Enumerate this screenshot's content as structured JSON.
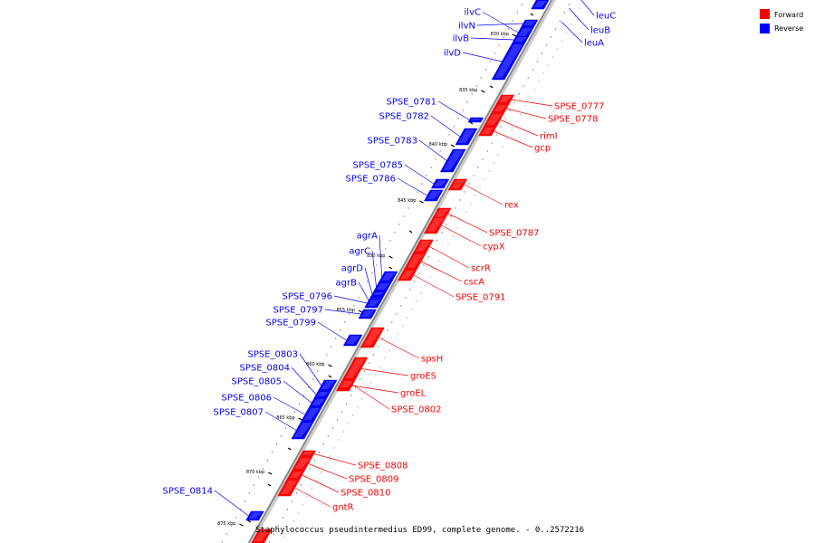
{
  "caption": "Staphylococcus pseudintermedius ED99, complete genome. - 0..2572216",
  "legend": [
    {
      "label": "Forward",
      "color": "#ff0000"
    },
    {
      "label": "Reverse",
      "color": "#0000ff"
    }
  ],
  "colors": {
    "forward": "#ff0000",
    "reverse": "#0000ff",
    "backbone": "#999999"
  },
  "kbp_ticks": [
    "830 kbp",
    "835 kbp",
    "840 kbp",
    "845 kbp",
    "850 kbp",
    "855 kbp",
    "860 kbp",
    "865 kbp",
    "870 kbp",
    "875 kbp"
  ],
  "reverse_genes": [
    "ilvC",
    "ilvN",
    "ilvB",
    "ilvD",
    "SPSE_0781",
    "SPSE_0782",
    "SPSE_0783",
    "SPSE_0785",
    "SPSE_0786",
    "agrA",
    "agrC",
    "agrD",
    "agrB",
    "SPSE_0796",
    "SPSE_0797",
    "SPSE_0799",
    "SPSE_0803",
    "SPSE_0804",
    "SPSE_0805",
    "SPSE_0806",
    "SPSE_0807",
    "SPSE_0814"
  ],
  "reverse_right_genes": [
    "leuC",
    "leuB",
    "leuA"
  ],
  "forward_genes": [
    "SPSE_0777",
    "SPSE_0778",
    "rimI",
    "gcp",
    "rex",
    "SPSE_0787",
    "cypX",
    "scrR",
    "cscA",
    "SPSE_0791",
    "spsH",
    "groES",
    "groEL",
    "SPSE_0802",
    "SPSE_0808",
    "SPSE_0809",
    "SPSE_0810",
    "gntR"
  ]
}
